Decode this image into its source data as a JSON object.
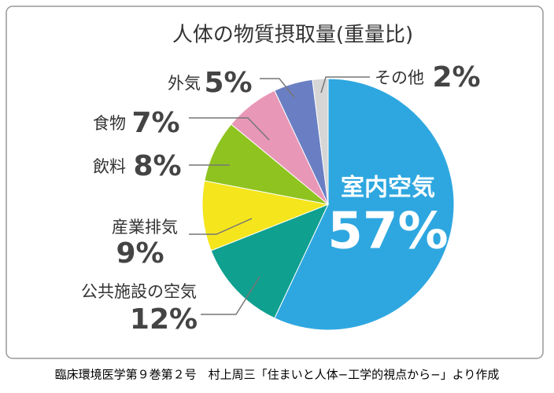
{
  "chart_data": {
    "type": "pie",
    "title": "人体の物質摂取量(重量比)",
    "categories": [
      "室内空気",
      "公共施設の空気",
      "産業排気",
      "飲料",
      "食物",
      "外気",
      "その他"
    ],
    "values": [
      57,
      12,
      9,
      8,
      7,
      5,
      2
    ],
    "value_labels": [
      "57%",
      "12%",
      "9%",
      "8%",
      "7%",
      "5%",
      "2%"
    ],
    "colors": [
      "#2ea7e0",
      "#0fa08f",
      "#f4e51c",
      "#8fc31f",
      "#e897b7",
      "#6a7fc3",
      "#d6d6d6"
    ],
    "source": "臨床環境医学第９巻第２号　村上周三「住まいと人体−工学的視点から−」より作成"
  }
}
